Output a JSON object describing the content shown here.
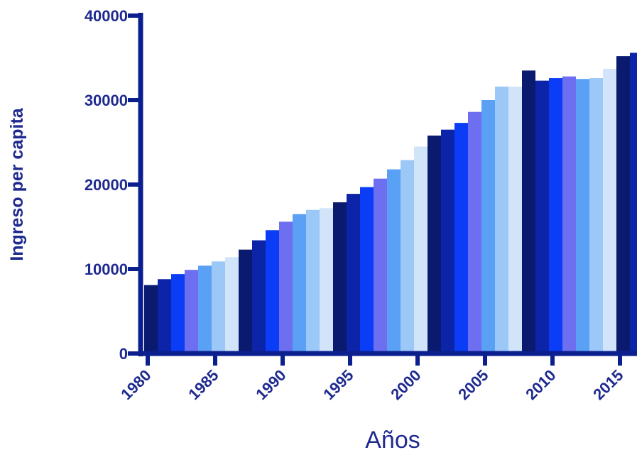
{
  "chart_data": {
    "type": "bar",
    "title": "",
    "xlabel": "Años",
    "ylabel": "Ingreso per capita",
    "ylim": [
      0,
      40000
    ],
    "xlim": [
      1980,
      2016
    ],
    "yticks": [
      "0",
      "10000",
      "20000",
      "30000",
      "40000"
    ],
    "xticks": [
      "1980",
      "1985",
      "1990",
      "1995",
      "2000",
      "2005",
      "2010",
      "2015"
    ],
    "grid": false,
    "legend": "none",
    "categories": [
      1980,
      1981,
      1982,
      1983,
      1984,
      1985,
      1986,
      1987,
      1988,
      1989,
      1990,
      1991,
      1992,
      1993,
      1994,
      1995,
      1996,
      1997,
      1998,
      1999,
      2000,
      2001,
      2002,
      2003,
      2004,
      2005,
      2006,
      2007,
      2008,
      2009,
      2010,
      2011,
      2012,
      2013,
      2014,
      2015,
      2016
    ],
    "values": [
      8100,
      8800,
      9400,
      9900,
      10400,
      10900,
      11400,
      12300,
      13400,
      14600,
      15600,
      16500,
      17000,
      17200,
      17900,
      18900,
      19700,
      20700,
      21800,
      22900,
      24500,
      25800,
      26500,
      27300,
      28600,
      30000,
      31600,
      31600,
      33500,
      32300,
      32600,
      32800,
      32500,
      32600,
      33700,
      35200,
      35600
    ],
    "colors": {
      "axis": "#0b1f8e",
      "text": "#1f2a8f",
      "bar_palette": [
        "#0a1a6e",
        "#0c25a8",
        "#0a3df5",
        "#6e6ef0",
        "#5aa0f5",
        "#9cc8f8",
        "#d2e4fa"
      ]
    }
  }
}
